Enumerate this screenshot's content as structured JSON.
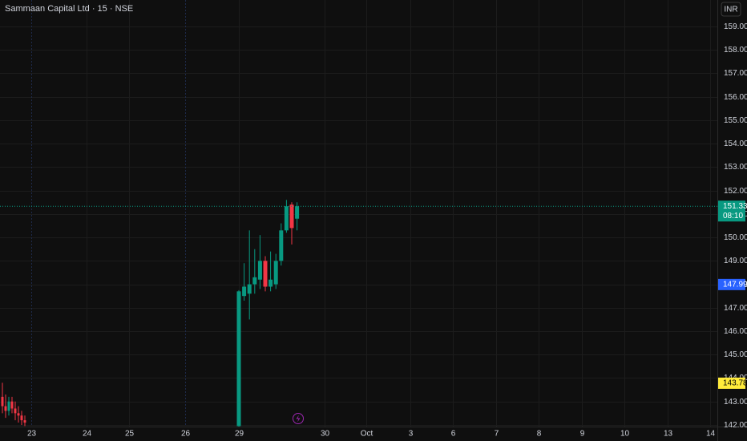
{
  "chart_data": {
    "type": "candlestick",
    "title": "Sammaan Capital Ltd · 15 · NSE",
    "currency": "INR",
    "ylim": [
      141.93,
      160.13
    ],
    "yticks": [
      {
        "value": 142,
        "label": "142.00"
      },
      {
        "value": 143,
        "label": "143.00"
      },
      {
        "value": 144,
        "label": "144.00"
      },
      {
        "value": 145,
        "label": "145.00"
      },
      {
        "value": 146,
        "label": "146.00"
      },
      {
        "value": 147,
        "label": "147.00"
      },
      {
        "value": 148,
        "label": "148.00"
      },
      {
        "value": 149,
        "label": "149.00"
      },
      {
        "value": 150,
        "label": "150.00"
      },
      {
        "value": 151,
        "label": "151.00"
      },
      {
        "value": 152,
        "label": "152.00"
      },
      {
        "value": 153,
        "label": "153.00"
      },
      {
        "value": 154,
        "label": "154.00"
      },
      {
        "value": 155,
        "label": "155.00"
      },
      {
        "value": 156,
        "label": "156.00"
      },
      {
        "value": 157,
        "label": "157.00"
      },
      {
        "value": 158,
        "label": "158.00"
      },
      {
        "value": 159,
        "label": "159.00"
      }
    ],
    "x_labels": [
      "23",
      "24",
      "25",
      "26",
      "29",
      "30",
      "Oct",
      "3",
      "6",
      "7",
      "8",
      "9",
      "10",
      "13",
      "14"
    ],
    "up_color": "#089981",
    "down_color": "#f23645",
    "candles": [
      {
        "open": [
          143.2,
          142.8,
          142.6,
          143.0,
          142.7,
          142.5,
          142.4,
          142.2
        ],
        "high": [
          143.8,
          143.3,
          143.2,
          143.2,
          143.0,
          142.8,
          142.6,
          142.4
        ],
        "low": [
          142.5,
          142.3,
          142.4,
          142.5,
          142.2,
          142.1,
          142.0,
          141.95
        ],
        "close": [
          142.8,
          142.6,
          143.0,
          142.7,
          142.5,
          142.4,
          142.2,
          142.1
        ]
      },
      {
        "open": [
          141.95,
          147.5,
          147.6,
          148.0,
          148.2,
          149.0,
          147.9,
          148.0,
          149.0,
          150.3,
          151.4,
          150.8
        ],
        "high": [
          147.75,
          148.9,
          150.3,
          149.5,
          150.1,
          149.2,
          149.4,
          149.3,
          150.6,
          151.6,
          151.5,
          151.5
        ],
        "low": [
          141.93,
          147.3,
          146.5,
          147.6,
          147.8,
          147.7,
          147.7,
          147.8,
          148.8,
          150.2,
          149.7,
          150.3
        ],
        "close": [
          147.7,
          147.9,
          148.0,
          148.3,
          149.0,
          147.9,
          148.2,
          149.0,
          150.3,
          151.33,
          150.4,
          151.33
        ]
      }
    ],
    "last_price": 151.33,
    "countdown": "08:10",
    "price_markers": [
      {
        "value": 147.99,
        "color": "#2962ff"
      },
      {
        "value": 143.78,
        "color": "#ffeb3b"
      }
    ]
  }
}
